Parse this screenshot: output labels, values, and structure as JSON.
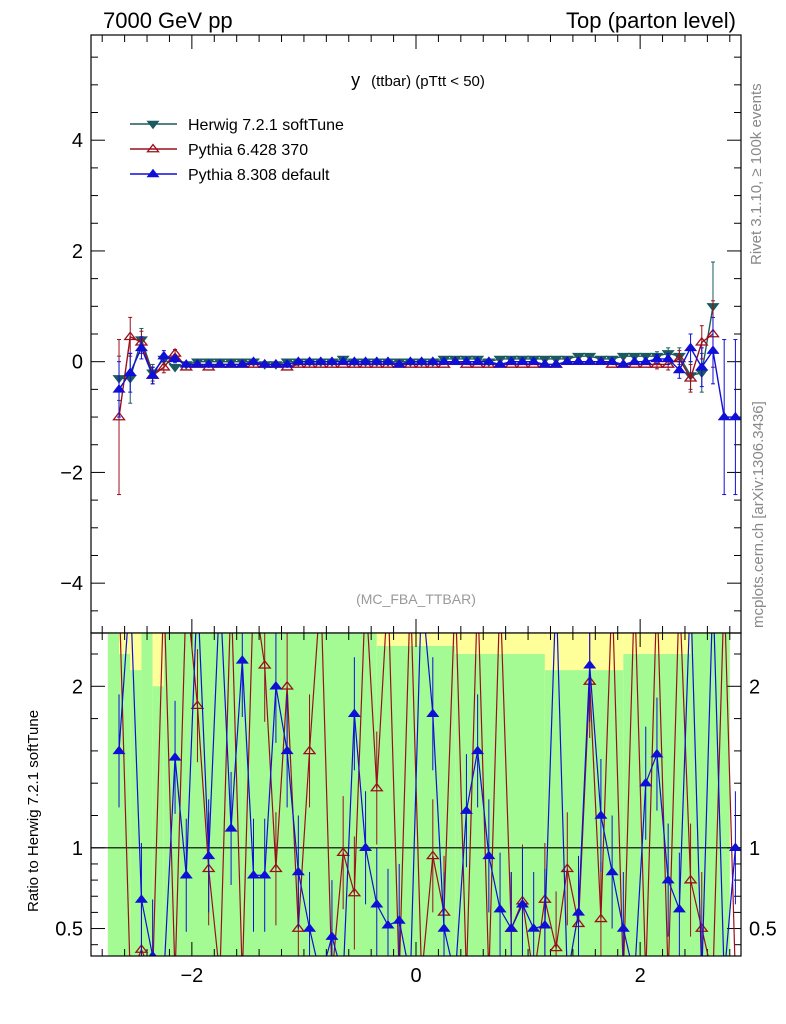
{
  "header": {
    "left": "7000 GeV pp",
    "right": "Top (parton level)"
  },
  "side": {
    "rivet": "Rivet 3.1.10, ≥ 100k events",
    "mcplots": "mcplots.cern.ch [arXiv:1306.3436]"
  },
  "chart_data": [
    {
      "type": "line",
      "title": "y (ttbar) (pTtt < 50)",
      "title_main": "y",
      "title_sub": "(ttbar) (pTtt < 50)",
      "tag": "(MC_FBA_TTBAR)",
      "xlim": [
        -2.9,
        2.9
      ],
      "ylim": [
        -4.9,
        5.9
      ],
      "x_ticks": [
        -2,
        0,
        2
      ],
      "y_ticks": [
        -4,
        -2,
        0,
        2,
        4
      ],
      "legend_position": "top-left",
      "x": [
        -2.65,
        -2.55,
        -2.45,
        -2.35,
        -2.25,
        -2.15,
        -2.05,
        -1.95,
        -1.85,
        -1.75,
        -1.65,
        -1.55,
        -1.45,
        -1.35,
        -1.25,
        -1.15,
        -1.05,
        -0.95,
        -0.85,
        -0.75,
        -0.65,
        -0.55,
        -0.45,
        -0.35,
        -0.25,
        -0.15,
        -0.05,
        0.05,
        0.15,
        0.25,
        0.35,
        0.45,
        0.55,
        0.65,
        0.75,
        0.85,
        0.95,
        1.05,
        1.15,
        1.25,
        1.35,
        1.45,
        1.55,
        1.65,
        1.75,
        1.85,
        1.95,
        2.05,
        2.15,
        2.25,
        2.35,
        2.45,
        2.55,
        2.65,
        2.75,
        2.85
      ],
      "series": [
        {
          "name": "Herwig 7.2.1 softTune",
          "color": "#1b5a5e",
          "marker": "triangle-down-filled",
          "values": [
            -0.3,
            -0.3,
            0.4,
            -0.2,
            0.05,
            -0.1,
            -0.05,
            0.0,
            0.0,
            0.0,
            0.0,
            0.0,
            0.0,
            -0.05,
            -0.05,
            0.0,
            0.0,
            0.0,
            0.0,
            0.0,
            0.05,
            0.0,
            0.0,
            0.0,
            0.0,
            0.0,
            0.0,
            0.0,
            0.0,
            0.05,
            0.05,
            0.05,
            0.05,
            0.0,
            0.05,
            0.05,
            0.05,
            0.05,
            0.05,
            0.05,
            0.05,
            0.1,
            0.1,
            0.05,
            0.05,
            0.1,
            0.1,
            0.1,
            0.1,
            0.15,
            0.1,
            -0.25,
            -0.2,
            1.0,
            null,
            null
          ],
          "errors": [
            0.4,
            0.45,
            0.2,
            0.15,
            0.1,
            0.06,
            0.05,
            0.04,
            0.04,
            0.04,
            0.04,
            0.04,
            0.04,
            0.04,
            0.04,
            0.04,
            0.04,
            0.04,
            0.04,
            0.04,
            0.04,
            0.04,
            0.04,
            0.04,
            0.04,
            0.04,
            0.04,
            0.04,
            0.04,
            0.04,
            0.04,
            0.04,
            0.04,
            0.04,
            0.04,
            0.04,
            0.04,
            0.04,
            0.04,
            0.04,
            0.04,
            0.04,
            0.04,
            0.04,
            0.04,
            0.04,
            0.05,
            0.06,
            0.08,
            0.1,
            0.15,
            0.25,
            0.35,
            0.8,
            0,
            0
          ]
        },
        {
          "name": "Pythia 6.428 370",
          "color": "#9b0f1c",
          "marker": "triangle-up-open",
          "values": [
            -1.0,
            0.45,
            0.35,
            -0.25,
            -0.1,
            0.15,
            -0.1,
            -0.05,
            -0.1,
            -0.05,
            -0.05,
            -0.05,
            -0.05,
            -0.05,
            -0.05,
            -0.1,
            -0.05,
            -0.05,
            -0.05,
            -0.05,
            -0.05,
            -0.05,
            -0.05,
            -0.05,
            -0.05,
            -0.05,
            -0.05,
            -0.05,
            -0.05,
            -0.05,
            0.0,
            -0.05,
            -0.05,
            -0.05,
            -0.05,
            -0.05,
            -0.05,
            -0.05,
            -0.05,
            -0.05,
            0.0,
            0.0,
            0.0,
            0.0,
            -0.05,
            -0.05,
            -0.05,
            -0.05,
            -0.05,
            -0.05,
            0.05,
            -0.3,
            0.35,
            0.5,
            null,
            null
          ],
          "errors": [
            1.4,
            0.35,
            0.2,
            0.15,
            0.1,
            0.07,
            0.05,
            0.04,
            0.04,
            0.04,
            0.04,
            0.04,
            0.04,
            0.04,
            0.04,
            0.04,
            0.04,
            0.04,
            0.04,
            0.04,
            0.04,
            0.04,
            0.04,
            0.04,
            0.04,
            0.04,
            0.04,
            0.04,
            0.04,
            0.04,
            0.04,
            0.04,
            0.04,
            0.04,
            0.04,
            0.04,
            0.04,
            0.04,
            0.04,
            0.04,
            0.04,
            0.04,
            0.04,
            0.04,
            0.04,
            0.04,
            0.05,
            0.06,
            0.08,
            0.1,
            0.15,
            0.25,
            0.3,
            0.6,
            0,
            0
          ]
        },
        {
          "name": "Pythia 8.308 default",
          "color": "#0f0fd6",
          "marker": "triangle-up-filled",
          "values": [
            -0.5,
            -0.2,
            0.25,
            -0.25,
            0.1,
            0.05,
            -0.05,
            -0.05,
            -0.05,
            -0.05,
            -0.05,
            -0.05,
            0.0,
            -0.05,
            -0.05,
            -0.05,
            0.0,
            0.0,
            0.0,
            0.0,
            0.0,
            0.0,
            0.0,
            0.0,
            0.0,
            -0.05,
            0.0,
            0.0,
            0.0,
            0.0,
            0.0,
            0.0,
            0.0,
            0.0,
            -0.05,
            0.0,
            0.0,
            0.0,
            -0.05,
            -0.05,
            0.0,
            0.0,
            0.0,
            0.0,
            0.0,
            -0.05,
            0.0,
            0.0,
            0.05,
            0.05,
            -0.15,
            0.25,
            -0.1,
            0.2,
            -1.0,
            -1.0
          ],
          "errors": [
            0.5,
            0.35,
            0.2,
            0.15,
            0.1,
            0.07,
            0.05,
            0.04,
            0.04,
            0.04,
            0.04,
            0.04,
            0.04,
            0.04,
            0.04,
            0.04,
            0.04,
            0.04,
            0.04,
            0.04,
            0.04,
            0.04,
            0.04,
            0.04,
            0.04,
            0.04,
            0.04,
            0.04,
            0.04,
            0.04,
            0.04,
            0.04,
            0.04,
            0.04,
            0.04,
            0.04,
            0.04,
            0.04,
            0.04,
            0.04,
            0.04,
            0.04,
            0.04,
            0.04,
            0.04,
            0.04,
            0.05,
            0.06,
            0.08,
            0.1,
            0.15,
            0.25,
            0.35,
            0.6,
            1.4,
            1.4
          ]
        }
      ]
    },
    {
      "type": "line",
      "ylabel": "Ratio to Herwig 7.2.1 softTune",
      "xlim": [
        -2.9,
        2.9
      ],
      "ylim": [
        0.33,
        2.33
      ],
      "x_ticks": [
        -2,
        0,
        2
      ],
      "y_ticks": [
        0.5,
        1,
        2
      ],
      "reference_line": 1,
      "band_colors": {
        "inner": "#a4fb94",
        "outer": "#ffff9a"
      },
      "band": {
        "x": [
          -2.75,
          2.8
        ],
        "steps": [
          {
            "x0": -2.75,
            "x1": -2.65,
            "lo": 0.33,
            "hi": 2.33
          },
          {
            "x0": -2.65,
            "x1": -2.55,
            "lo": 0.33,
            "hi": 2.2
          },
          {
            "x0": -2.55,
            "x1": -2.45,
            "lo": 0.33,
            "hi": 2.1
          },
          {
            "x0": -2.45,
            "x1": -2.35,
            "lo": 0.33,
            "hi": 2.33
          },
          {
            "x0": -2.35,
            "x1": -2.25,
            "lo": 0.33,
            "hi": 2.0
          },
          {
            "x0": -2.25,
            "x1": -2.15,
            "lo": 0.33,
            "hi": 2.33
          },
          {
            "x0": -2.15,
            "x1": -1.55,
            "lo": 0.33,
            "hi": 2.33
          },
          {
            "x0": -1.55,
            "x1": -0.35,
            "lo": 0.33,
            "hi": 2.33
          },
          {
            "x0": -0.35,
            "x1": 0.35,
            "lo": 0.33,
            "hi": 2.25
          },
          {
            "x0": 0.35,
            "x1": 1.15,
            "lo": 0.33,
            "hi": 2.2
          },
          {
            "x0": 1.15,
            "x1": 1.85,
            "lo": 0.33,
            "hi": 2.1
          },
          {
            "x0": 1.85,
            "x1": 2.45,
            "lo": 0.33,
            "hi": 2.2
          },
          {
            "x0": 2.45,
            "x1": 2.8,
            "lo": 0.33,
            "hi": 2.33
          }
        ]
      },
      "series": [
        {
          "name": "Pythia 6.428 370",
          "color": "#9b0f1c",
          "marker": "triangle-up-open",
          "values": [
            null,
            null,
            0.37,
            null,
            null,
            null,
            null,
            1.88,
            0.87,
            null,
            null,
            null,
            null,
            2.13,
            0.87,
            2.0,
            0.5,
            1.6,
            null,
            null,
            0.97,
            0.72,
            null,
            1.37,
            null,
            null,
            null,
            null,
            0.95,
            0.6,
            null,
            null,
            null,
            null,
            null,
            0.5,
            0.67,
            null,
            0.68,
            0.38,
            0.87,
            0.53,
            2.03,
            0.56,
            null,
            null,
            null,
            null,
            null,
            null,
            null,
            0.8,
            0.5,
            null,
            null,
            null
          ]
        },
        {
          "name": "Pythia 8.308 default",
          "color": "#0f0fd6",
          "marker": "triangle-up-filled",
          "values": [
            1.6,
            null,
            0.68,
            0.33,
            null,
            1.56,
            0.83,
            null,
            0.95,
            null,
            1.12,
            2.16,
            0.83,
            0.83,
            2.0,
            1.6,
            0.85,
            0.5,
            null,
            0.45,
            null,
            1.83,
            1.0,
            0.65,
            0.52,
            0.55,
            null,
            null,
            1.83,
            0.5,
            null,
            1.23,
            1.6,
            0.95,
            0.62,
            0.5,
            0.65,
            0.5,
            0.52,
            null,
            null,
            0.6,
            2.13,
            1.2,
            0.85,
            0.5,
            null,
            1.4,
            1.58,
            0.8,
            0.62,
            null,
            null,
            null,
            null,
            1.0
          ]
        }
      ]
    }
  ]
}
